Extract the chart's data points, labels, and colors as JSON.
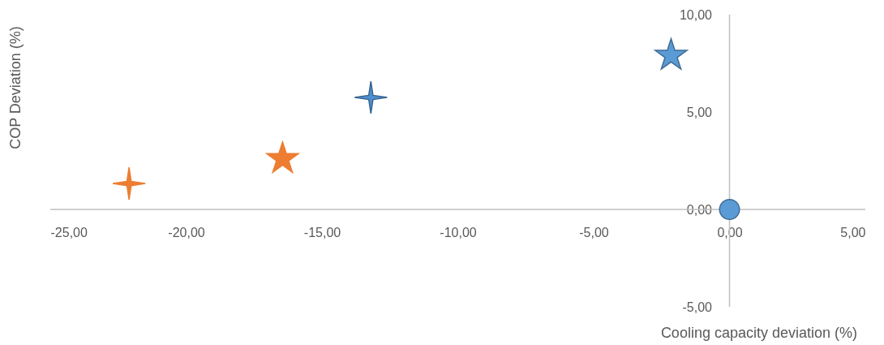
{
  "chart_data": {
    "type": "scatter",
    "xlabel": "Cooling capacity deviation (%)",
    "ylabel": "COP Deviation (%)",
    "xlim": [
      -25,
      5
    ],
    "ylim": [
      -5,
      10
    ],
    "xticks": [
      {
        "value": -25,
        "label": "-25,00"
      },
      {
        "value": -20,
        "label": "-20,00"
      },
      {
        "value": -15,
        "label": "-15,00"
      },
      {
        "value": -10,
        "label": "-10,00"
      },
      {
        "value": -5,
        "label": "-5,00"
      },
      {
        "value": 0,
        "label": "0,00"
      },
      {
        "value": 5,
        "label": "5,00"
      }
    ],
    "yticks": [
      {
        "value": -5,
        "label": "-5,00"
      },
      {
        "value": 0,
        "label": "0,00"
      },
      {
        "value": 5,
        "label": "5,00"
      },
      {
        "value": 10,
        "label": "10,00"
      }
    ],
    "grid": false,
    "series": [
      {
        "color": "#5b9bd5",
        "marker": "circle",
        "x": [
          0
        ],
        "values": [
          0
        ]
      },
      {
        "color": "#5b9bd5",
        "marker": "star",
        "x": [
          -2.15
        ],
        "values": [
          7.9
        ]
      },
      {
        "color": "#4f8fcf",
        "marker": "cross",
        "x": [
          -13.2
        ],
        "values": [
          5.75
        ]
      },
      {
        "color": "#ed7d31",
        "marker": "star",
        "x": [
          -16.45
        ],
        "values": [
          2.6
        ]
      },
      {
        "color": "#ed7d31",
        "marker": "cross",
        "x": [
          -22.1
        ],
        "values": [
          1.33
        ]
      }
    ]
  }
}
